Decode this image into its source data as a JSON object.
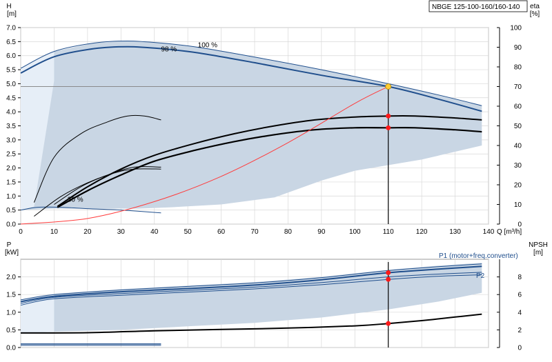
{
  "colors": {
    "envelope": "#c9d6e4",
    "envelope_light": "#e6eef7",
    "curve_blue": "#1f4e8c",
    "curve_dark": "#000000",
    "system_curve": "#ff3b3b",
    "duty_point": "#ffcc33",
    "marker_red": "#ff1a1a",
    "grid": "#d8d8d8"
  },
  "chart_data": [
    {
      "type": "line",
      "panel": "head-efficiency",
      "title": "NBGE 125-100-160/160-140",
      "xlabel": "Q [m³/h]",
      "ylabel_left": "H",
      "ylabel_left_unit": "[m]",
      "ylabel_right": "eta",
      "ylabel_right_unit": "[%]",
      "xlim": [
        0,
        140
      ],
      "ylim_left": [
        0,
        7.0
      ],
      "ylim_right": [
        0,
        100
      ],
      "x_ticks": [
        0,
        10,
        20,
        30,
        40,
        50,
        60,
        70,
        80,
        90,
        100,
        110,
        120,
        130,
        140
      ],
      "y_ticks_left": [
        "0.0",
        "0.5",
        "1.0",
        "1.5",
        "2.0",
        "2.5",
        "3.0",
        "3.5",
        "4.0",
        "4.5",
        "5.0",
        "5.5",
        "6.0",
        "6.5",
        "7.0"
      ],
      "y_ticks_right": [
        0,
        10,
        20,
        30,
        40,
        50,
        60,
        70,
        80,
        90,
        100
      ],
      "grid": true,
      "annotations": [
        {
          "text": "100 %",
          "x": 53,
          "y": 6.3
        },
        {
          "text": "98 %",
          "x": 42,
          "y": 6.15
        },
        {
          "text": "30 %",
          "x": 14,
          "y": 0.8
        }
      ],
      "envelope": {
        "upper": [
          [
            0,
            5.55
          ],
          [
            10,
            6.15
          ],
          [
            22,
            6.45
          ],
          [
            32,
            6.52
          ],
          [
            42,
            6.45
          ],
          [
            53,
            6.3
          ],
          [
            70,
            5.95
          ],
          [
            90,
            5.5
          ],
          [
            110,
            5.0
          ],
          [
            125,
            4.6
          ],
          [
            138,
            4.22
          ]
        ],
        "lower": [
          [
            138,
            2.8
          ],
          [
            120,
            2.3
          ],
          [
            100,
            1.9
          ],
          [
            90,
            1.55
          ],
          [
            76,
            0.95
          ],
          [
            60,
            0.7
          ],
          [
            45,
            0.6
          ],
          [
            35,
            0.55
          ],
          [
            20,
            0.55
          ],
          [
            10,
            0.55
          ],
          [
            0,
            0.5
          ]
        ],
        "light_left_lower": [
          [
            0,
            0.5
          ],
          [
            4,
            0.62
          ],
          [
            10,
            5.1
          ],
          [
            10,
            6.15
          ],
          [
            0,
            5.55
          ]
        ]
      },
      "series": [
        {
          "name": "100 %",
          "axis": "left",
          "role": "head-max",
          "color": "curve_blue",
          "width": 1,
          "x": [
            0,
            10,
            22,
            32,
            42,
            53,
            70,
            90,
            110,
            125,
            138
          ],
          "y": [
            5.55,
            6.15,
            6.45,
            6.52,
            6.45,
            6.3,
            5.95,
            5.5,
            5.0,
            4.6,
            4.22
          ]
        },
        {
          "name": "98 %",
          "axis": "left",
          "role": "head-duty",
          "color": "curve_blue",
          "width": 2,
          "x": [
            0,
            10,
            22,
            32,
            42,
            53,
            70,
            90,
            110,
            125,
            138
          ],
          "y": [
            5.38,
            5.96,
            6.25,
            6.32,
            6.25,
            6.1,
            5.75,
            5.3,
            4.9,
            4.45,
            4.02
          ]
        },
        {
          "name": "",
          "axis": "left",
          "role": "head-30",
          "color": "curve_blue",
          "width": 1,
          "x": [
            0,
            5,
            12,
            20,
            30,
            42
          ],
          "y": [
            0.5,
            0.6,
            0.6,
            0.55,
            0.5,
            0.4
          ]
        },
        {
          "name": "",
          "axis": "right",
          "role": "eta-100",
          "color": "curve_dark",
          "width": 2,
          "x": [
            11,
            20,
            30,
            40,
            52,
            64,
            76,
            88,
            100,
            110,
            118,
            130,
            138
          ],
          "y": [
            9,
            19,
            28,
            35,
            41,
            46,
            50,
            53,
            54.5,
            55,
            55,
            54,
            53
          ]
        },
        {
          "name": "",
          "axis": "right",
          "role": "eta-98",
          "color": "curve_dark",
          "width": 2.2,
          "x": [
            11,
            20,
            30,
            40,
            52,
            64,
            76,
            88,
            100,
            110,
            118,
            130,
            138
          ],
          "y": [
            8.5,
            17,
            25,
            32,
            37.5,
            42,
            45.5,
            48,
            49,
            49,
            49,
            48,
            47
          ]
        },
        {
          "name": "",
          "axis": "right",
          "role": "eta-30a",
          "color": "curve_dark",
          "width": 1,
          "x": [
            4,
            10,
            18,
            26,
            32,
            37,
            42
          ],
          "y": [
            11,
            34,
            46,
            52,
            55,
            55,
            53
          ]
        },
        {
          "name": "",
          "axis": "right",
          "role": "eta-30b",
          "color": "curve_dark",
          "width": 1,
          "x": [
            4,
            12,
            20,
            28,
            34,
            42
          ],
          "y": [
            4,
            14,
            21,
            26,
            28,
            28
          ]
        },
        {
          "name": "",
          "axis": "right",
          "role": "eta-30c",
          "color": "curve_dark",
          "width": 1,
          "x": [
            10,
            18,
            26,
            34,
            42
          ],
          "y": [
            10,
            19,
            25,
            29,
            29
          ]
        },
        {
          "name": "",
          "axis": "left",
          "role": "system",
          "color": "system_curve",
          "width": 1,
          "x": [
            0,
            20,
            40,
            60,
            80,
            100,
            110
          ],
          "y": [
            0.0,
            0.2,
            0.8,
            1.7,
            2.9,
            4.3,
            4.9
          ]
        }
      ],
      "duty_line": {
        "x": 110,
        "h": 4.9
      },
      "duty_point": {
        "x": 110,
        "y": 4.9
      },
      "markers": [
        {
          "x": 110,
          "y_right": 55
        },
        {
          "x": 110,
          "y_right": 49
        }
      ]
    },
    {
      "type": "line",
      "panel": "power-npsh",
      "xlabel": "",
      "ylabel_left": "P",
      "ylabel_left_unit": "[kW]",
      "ylabel_right": "NPSH",
      "ylabel_right_unit": "[m]",
      "xlim": [
        0,
        140
      ],
      "ylim_left": [
        0,
        2.5
      ],
      "ylim_right": [
        0,
        10
      ],
      "y_ticks_left": [
        "0.0",
        "0.5",
        "1.0",
        "1.5",
        "2.0"
      ],
      "y_ticks_right": [
        0,
        2,
        4,
        6,
        8
      ],
      "grid": true,
      "legend_labels": [
        {
          "text": "P1 (motor+freq.converter)"
        },
        {
          "text": "P2"
        }
      ],
      "envelope": {
        "upper": [
          [
            0,
            1.35
          ],
          [
            10,
            1.52
          ],
          [
            30,
            1.65
          ],
          [
            50,
            1.75
          ],
          [
            70,
            1.85
          ],
          [
            90,
            2.0
          ],
          [
            110,
            2.2
          ],
          [
            125,
            2.32
          ],
          [
            138,
            2.4
          ]
        ],
        "lower": [
          [
            138,
            1.55
          ],
          [
            125,
            1.3
          ],
          [
            110,
            1.08
          ],
          [
            90,
            0.85
          ],
          [
            70,
            0.7
          ],
          [
            50,
            0.6
          ],
          [
            30,
            0.5
          ],
          [
            10,
            0.45
          ],
          [
            0,
            0.4
          ]
        ],
        "light_left_lower": [
          [
            0,
            0.4
          ],
          [
            10,
            0.45
          ],
          [
            10,
            1.52
          ],
          [
            0,
            1.35
          ]
        ]
      },
      "series": [
        {
          "name": "P1 (motor+freq.converter)",
          "axis": "left",
          "role": "p1-100",
          "color": "curve_blue",
          "width": 1,
          "x": [
            0,
            10,
            30,
            50,
            70,
            90,
            110,
            125,
            138
          ],
          "y": [
            1.35,
            1.5,
            1.63,
            1.73,
            1.83,
            1.98,
            2.18,
            2.29,
            2.37
          ]
        },
        {
          "name": "",
          "axis": "left",
          "role": "p1-98",
          "color": "curve_blue",
          "width": 2,
          "x": [
            0,
            10,
            30,
            50,
            70,
            90,
            110,
            125,
            138
          ],
          "y": [
            1.3,
            1.45,
            1.58,
            1.67,
            1.77,
            1.92,
            2.12,
            2.22,
            2.3
          ]
        },
        {
          "name": "P2",
          "axis": "left",
          "role": "p2-100",
          "color": "curve_blue",
          "width": 1,
          "x": [
            0,
            10,
            30,
            50,
            70,
            90,
            110,
            125,
            138
          ],
          "y": [
            1.25,
            1.42,
            1.53,
            1.62,
            1.71,
            1.84,
            2.0,
            2.08,
            2.13
          ]
        },
        {
          "name": "",
          "axis": "left",
          "role": "p2-98",
          "color": "curve_blue",
          "width": 1,
          "x": [
            0,
            10,
            30,
            50,
            70,
            90,
            110,
            125,
            138
          ],
          "y": [
            1.2,
            1.38,
            1.48,
            1.57,
            1.66,
            1.78,
            1.93,
            2.02,
            2.06
          ]
        },
        {
          "name": "",
          "axis": "right",
          "role": "npsh",
          "color": "curve_dark",
          "width": 2,
          "x": [
            0,
            20,
            40,
            60,
            80,
            100,
            110,
            120,
            130,
            138
          ],
          "y": [
            1.65,
            1.68,
            1.9,
            2.05,
            2.2,
            2.45,
            2.72,
            3.05,
            3.45,
            3.78
          ]
        },
        {
          "name": "",
          "axis": "left",
          "role": "p-30a",
          "color": "curve_blue",
          "width": 1.5,
          "x": [
            0,
            42
          ],
          "y": [
            0.1,
            0.1
          ]
        },
        {
          "name": "",
          "axis": "left",
          "role": "p-30b",
          "color": "curve_blue",
          "width": 1,
          "x": [
            0,
            42
          ],
          "y": [
            0.06,
            0.06
          ]
        }
      ],
      "duty_line": {
        "x": 110
      },
      "markers": [
        {
          "x": 110,
          "y": 2.12
        },
        {
          "x": 110,
          "y": 1.93
        },
        {
          "x": 110,
          "y_right": 2.72
        }
      ]
    }
  ]
}
